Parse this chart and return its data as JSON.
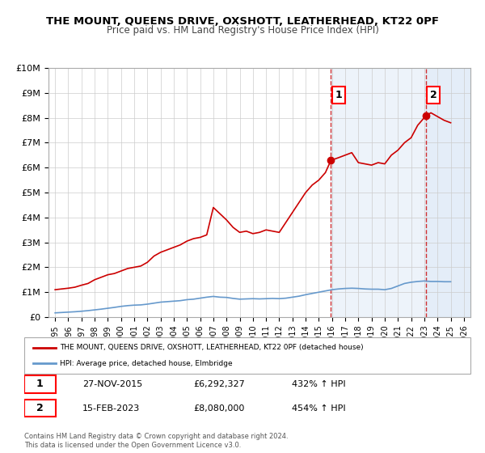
{
  "title": "THE MOUNT, QUEENS DRIVE, OXSHOTT, LEATHERHEAD, KT22 0PF",
  "subtitle": "Price paid vs. HM Land Registry's House Price Index (HPI)",
  "title_fontsize": 11,
  "subtitle_fontsize": 9,
  "background_color": "#ffffff",
  "plot_bg_color": "#ffffff",
  "grid_color": "#cccccc",
  "shade_color": "#dce9f7",
  "xlim": [
    1994.5,
    2026.5
  ],
  "ylim": [
    0,
    10000000
  ],
  "yticks": [
    0,
    1000000,
    2000000,
    3000000,
    4000000,
    5000000,
    6000000,
    7000000,
    8000000,
    9000000,
    10000000
  ],
  "ytick_labels": [
    "£0",
    "£1M",
    "£2M",
    "£3M",
    "£4M",
    "£5M",
    "£6M",
    "£7M",
    "£8M",
    "£9M",
    "£10M"
  ],
  "xticks": [
    1995,
    1996,
    1997,
    1998,
    1999,
    2000,
    2001,
    2002,
    2003,
    2004,
    2005,
    2006,
    2007,
    2008,
    2009,
    2010,
    2011,
    2012,
    2013,
    2014,
    2015,
    2016,
    2017,
    2018,
    2019,
    2020,
    2021,
    2022,
    2023,
    2024,
    2025,
    2026
  ],
  "sale1_x": 2015.92,
  "sale1_y": 6292327,
  "sale1_label": "1",
  "sale1_date": "27-NOV-2015",
  "sale1_price": "£6,292,327",
  "sale1_hpi": "432% ↑ HPI",
  "sale2_x": 2023.12,
  "sale2_y": 8080000,
  "sale2_label": "2",
  "sale2_date": "15-FEB-2023",
  "sale2_price": "£8,080,000",
  "sale2_hpi": "454% ↑ HPI",
  "red_line_color": "#cc0000",
  "blue_line_color": "#6699cc",
  "legend_label_red": "THE MOUNT, QUEENS DRIVE, OXSHOTT, LEATHERHEAD, KT22 0PF (detached house)",
  "legend_label_blue": "HPI: Average price, detached house, Elmbridge",
  "footer_line1": "Contains HM Land Registry data © Crown copyright and database right 2024.",
  "footer_line2": "This data is licensed under the Open Government Licence v3.0.",
  "red_x": [
    1995.0,
    1995.5,
    1996.0,
    1996.5,
    1997.0,
    1997.5,
    1998.0,
    1998.5,
    1999.0,
    1999.5,
    2000.0,
    2000.5,
    2001.0,
    2001.5,
    2002.0,
    2002.5,
    2003.0,
    2003.5,
    2004.0,
    2004.5,
    2005.0,
    2005.5,
    2006.0,
    2006.5,
    2007.0,
    2007.5,
    2008.0,
    2008.5,
    2009.0,
    2009.5,
    2010.0,
    2010.5,
    2011.0,
    2011.5,
    2012.0,
    2012.5,
    2013.0,
    2013.5,
    2014.0,
    2014.5,
    2015.0,
    2015.5,
    2015.92,
    2016.5,
    2017.0,
    2017.5,
    2018.0,
    2018.5,
    2019.0,
    2019.5,
    2020.0,
    2020.5,
    2021.0,
    2021.5,
    2022.0,
    2022.5,
    2023.12,
    2023.5,
    2024.0,
    2024.5,
    2025.0
  ],
  "red_y": [
    1100000,
    1130000,
    1160000,
    1200000,
    1280000,
    1350000,
    1500000,
    1600000,
    1700000,
    1750000,
    1850000,
    1950000,
    2000000,
    2050000,
    2200000,
    2450000,
    2600000,
    2700000,
    2800000,
    2900000,
    3050000,
    3150000,
    3200000,
    3300000,
    4400000,
    4150000,
    3900000,
    3600000,
    3400000,
    3450000,
    3350000,
    3400000,
    3500000,
    3450000,
    3400000,
    3800000,
    4200000,
    4600000,
    5000000,
    5300000,
    5500000,
    5800000,
    6292327,
    6400000,
    6500000,
    6600000,
    6200000,
    6150000,
    6100000,
    6200000,
    6150000,
    6500000,
    6700000,
    7000000,
    7200000,
    7700000,
    8080000,
    8200000,
    8050000,
    7900000,
    7800000
  ],
  "blue_x": [
    1995.0,
    1995.5,
    1996.0,
    1996.5,
    1997.0,
    1997.5,
    1998.0,
    1998.5,
    1999.0,
    1999.5,
    2000.0,
    2000.5,
    2001.0,
    2001.5,
    2002.0,
    2002.5,
    2003.0,
    2003.5,
    2004.0,
    2004.5,
    2005.0,
    2005.5,
    2006.0,
    2006.5,
    2007.0,
    2007.5,
    2008.0,
    2008.5,
    2009.0,
    2009.5,
    2010.0,
    2010.5,
    2011.0,
    2011.5,
    2012.0,
    2012.5,
    2013.0,
    2013.5,
    2014.0,
    2014.5,
    2015.0,
    2015.5,
    2016.0,
    2016.5,
    2017.0,
    2017.5,
    2018.0,
    2018.5,
    2019.0,
    2019.5,
    2020.0,
    2020.5,
    2021.0,
    2021.5,
    2022.0,
    2022.5,
    2023.0,
    2023.5,
    2024.0,
    2024.5,
    2025.0
  ],
  "blue_y": [
    170000,
    185000,
    200000,
    215000,
    235000,
    260000,
    290000,
    320000,
    355000,
    390000,
    430000,
    460000,
    480000,
    490000,
    520000,
    560000,
    600000,
    620000,
    640000,
    660000,
    700000,
    720000,
    760000,
    800000,
    830000,
    800000,
    790000,
    750000,
    720000,
    730000,
    740000,
    730000,
    740000,
    750000,
    740000,
    760000,
    800000,
    840000,
    900000,
    950000,
    1000000,
    1050000,
    1100000,
    1130000,
    1150000,
    1160000,
    1150000,
    1130000,
    1120000,
    1120000,
    1100000,
    1150000,
    1250000,
    1350000,
    1400000,
    1430000,
    1450000,
    1430000,
    1430000,
    1420000,
    1420000
  ]
}
